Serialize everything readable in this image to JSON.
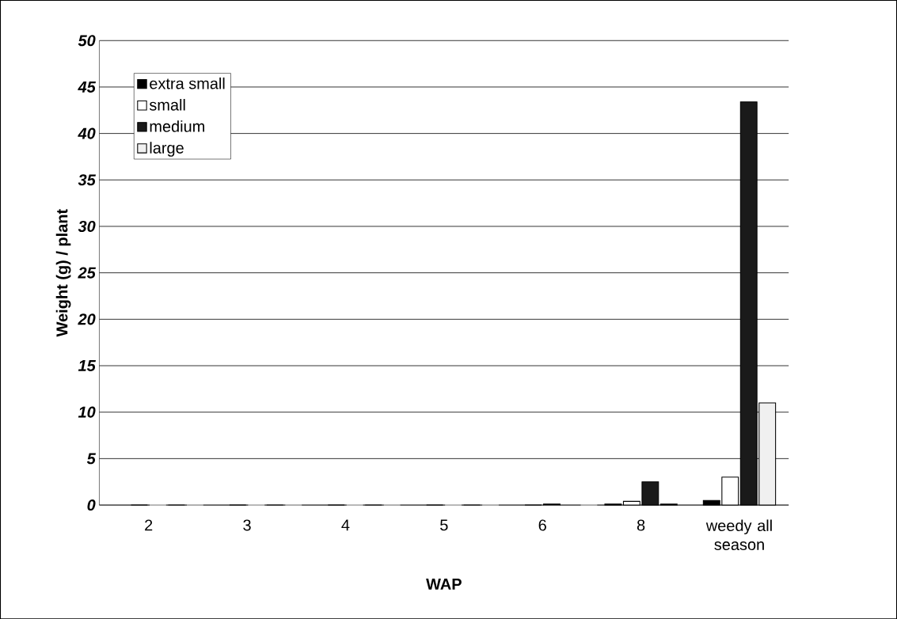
{
  "chart_data": {
    "type": "bar",
    "xlabel": "WAP",
    "ylabel": "Weight (g) / plant",
    "categories": [
      "2",
      "3",
      "4",
      "5",
      "6",
      "8",
      "weedy all season"
    ],
    "series": [
      {
        "name": "extra small",
        "color": "#000000",
        "values": [
          0,
          0,
          0,
          0,
          0,
          0.1,
          0.5
        ]
      },
      {
        "name": "small",
        "color": "#ffffff",
        "values": [
          0,
          0,
          0,
          0,
          0,
          0.4,
          3.0
        ]
      },
      {
        "name": "medium",
        "color": "#1a1a1a",
        "values": [
          0,
          0,
          0,
          0,
          0.1,
          2.5,
          43.4
        ]
      },
      {
        "name": "large",
        "color": "#f0f0f0",
        "values": [
          0,
          0,
          0,
          0,
          0,
          0.1,
          11.0
        ]
      }
    ],
    "ylim": [
      0,
      50
    ],
    "yticks": [
      0,
      5,
      10,
      15,
      20,
      25,
      30,
      35,
      40,
      45,
      50
    ],
    "grid": "y",
    "legend": "top left"
  }
}
